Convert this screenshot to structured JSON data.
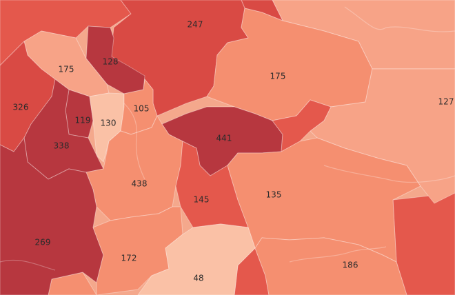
{
  "map": {
    "colors": {
      "darkest": "#b7373f",
      "dark": "#d94a44",
      "medium_dark": "#e4584c",
      "medium": "#ee7358",
      "light": "#f58f70",
      "lighter": "#f7a387",
      "lightest": "#fac1a6"
    },
    "regions": [
      {
        "id": "r247",
        "count": "247",
        "level": "dark"
      },
      {
        "id": "r128",
        "count": "128",
        "level": "darkest"
      },
      {
        "id": "r175w",
        "count": "175",
        "level": "lighter"
      },
      {
        "id": "r175e",
        "count": "175",
        "level": "light"
      },
      {
        "id": "r127",
        "count": "127",
        "level": "lighter"
      },
      {
        "id": "r326",
        "count": "326",
        "level": "dark"
      },
      {
        "id": "r119",
        "count": "119",
        "level": "darkest"
      },
      {
        "id": "r130",
        "count": "130",
        "level": "lightest"
      },
      {
        "id": "r105",
        "count": "105",
        "level": "light"
      },
      {
        "id": "r441",
        "count": "441",
        "level": "darkest"
      },
      {
        "id": "r338",
        "count": "338",
        "level": "darkest"
      },
      {
        "id": "r438",
        "count": "438",
        "level": "light"
      },
      {
        "id": "r145",
        "count": "145",
        "level": "medium_dark"
      },
      {
        "id": "r135",
        "count": "135",
        "level": "light"
      },
      {
        "id": "r269",
        "count": "269",
        "level": "darkest"
      },
      {
        "id": "r172",
        "count": "172",
        "level": "light"
      },
      {
        "id": "r48",
        "count": "48",
        "level": "lightest"
      },
      {
        "id": "r186",
        "count": "186",
        "level": "light"
      }
    ]
  }
}
